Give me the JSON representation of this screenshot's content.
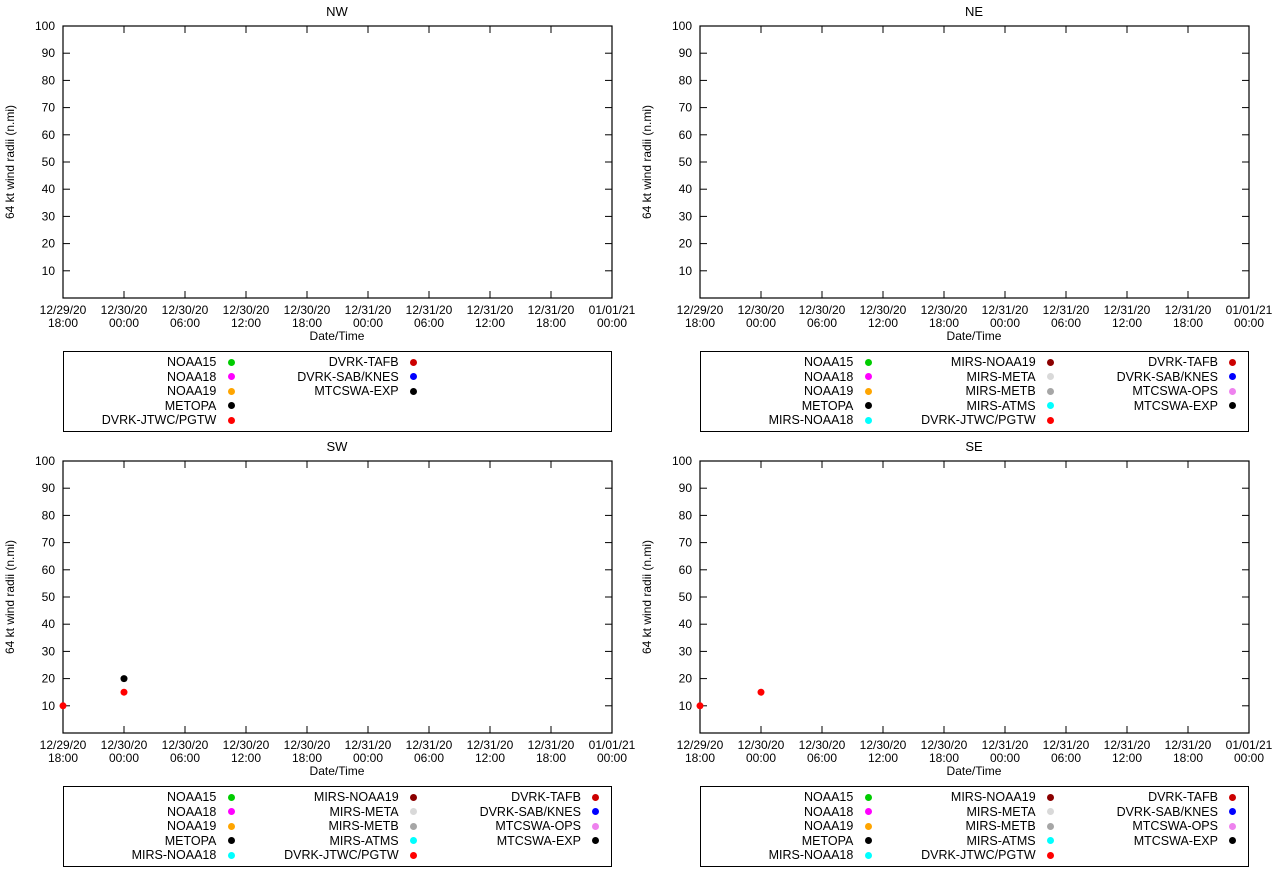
{
  "chart_data": [
    {
      "id": "nw",
      "type": "scatter",
      "title": "NW",
      "xlabel": "Date/Time",
      "ylabel": "64 kt wind radii (n.mi)",
      "ylim": [
        0,
        100
      ],
      "yticks": [
        10,
        20,
        30,
        40,
        50,
        60,
        70,
        80,
        90,
        100
      ],
      "grid": false,
      "legend_position": "below",
      "x_categories": [
        "12/29/20 18:00",
        "12/30/20 00:00",
        "12/30/20 06:00",
        "12/30/20 12:00",
        "12/30/20 18:00",
        "12/31/20 00:00",
        "12/31/20 06:00",
        "12/31/20 12:00",
        "12/31/20 18:00",
        "01/01/21 00:00"
      ],
      "series": [],
      "legend": {
        "ncols": 3,
        "columns": [
          [
            {
              "label": "NOAA15",
              "color": "#00cc00"
            },
            {
              "label": "NOAA18",
              "color": "#ff00ff"
            },
            {
              "label": "NOAA19",
              "color": "#ffa500"
            },
            {
              "label": "METOPA",
              "color": "#000000"
            },
            {
              "label": "DVRK-JTWC/PGTW",
              "color": "#ff0000"
            }
          ],
          [
            {
              "label": "DVRK-TAFB",
              "color": "#cc0000"
            },
            {
              "label": "DVRK-SAB/KNES",
              "color": "#0000ff"
            },
            {
              "label": "MTCSWA-EXP",
              "color": "#000000"
            }
          ]
        ]
      }
    },
    {
      "id": "ne",
      "type": "scatter",
      "title": "NE",
      "xlabel": "Date/Time",
      "ylabel": "64 kt wind radii (n.mi)",
      "ylim": [
        0,
        100
      ],
      "yticks": [
        10,
        20,
        30,
        40,
        50,
        60,
        70,
        80,
        90,
        100
      ],
      "grid": false,
      "legend_position": "below",
      "x_categories": [
        "12/29/20 18:00",
        "12/30/20 00:00",
        "12/30/20 06:00",
        "12/30/20 12:00",
        "12/30/20 18:00",
        "12/31/20 00:00",
        "12/31/20 06:00",
        "12/31/20 12:00",
        "12/31/20 18:00",
        "01/01/21 00:00"
      ],
      "series": [],
      "legend": {
        "ncols": 3,
        "columns": [
          [
            {
              "label": "NOAA15",
              "color": "#00cc00"
            },
            {
              "label": "NOAA18",
              "color": "#ff00ff"
            },
            {
              "label": "NOAA19",
              "color": "#ffa500"
            },
            {
              "label": "METOPA",
              "color": "#000000"
            },
            {
              "label": "MIRS-NOAA18",
              "color": "#00ffff"
            }
          ],
          [
            {
              "label": "MIRS-NOAA19",
              "color": "#8b0000"
            },
            {
              "label": "MIRS-META",
              "color": "#d9d9d9"
            },
            {
              "label": "MIRS-METB",
              "color": "#a6a6a6"
            },
            {
              "label": "MIRS-ATMS",
              "color": "#00ffff"
            },
            {
              "label": "DVRK-JTWC/PGTW",
              "color": "#ff0000"
            }
          ],
          [
            {
              "label": "DVRK-TAFB",
              "color": "#cc0000"
            },
            {
              "label": "DVRK-SAB/KNES",
              "color": "#0000ff"
            },
            {
              "label": "MTCSWA-OPS",
              "color": "#ee82ee"
            },
            {
              "label": "MTCSWA-EXP",
              "color": "#000000"
            }
          ]
        ]
      }
    },
    {
      "id": "sw",
      "type": "scatter",
      "title": "SW",
      "xlabel": "Date/Time",
      "ylabel": "64 kt wind radii (n.mi)",
      "ylim": [
        0,
        100
      ],
      "yticks": [
        10,
        20,
        30,
        40,
        50,
        60,
        70,
        80,
        90,
        100
      ],
      "grid": false,
      "legend_position": "below",
      "x_categories": [
        "12/29/20 18:00",
        "12/30/20 00:00",
        "12/30/20 06:00",
        "12/30/20 12:00",
        "12/30/20 18:00",
        "12/31/20 00:00",
        "12/31/20 06:00",
        "12/31/20 12:00",
        "12/31/20 18:00",
        "01/01/21 00:00"
      ],
      "series": [
        {
          "name": "DVRK-JTWC/PGTW",
          "color": "#ff0000",
          "points": [
            {
              "x": "12/29/20 18:00",
              "y": 10
            },
            {
              "x": "12/30/20 00:00",
              "y": 15
            }
          ]
        },
        {
          "name": "MTCSWA-EXP",
          "color": "#000000",
          "points": [
            {
              "x": "12/30/20 00:00",
              "y": 20
            }
          ]
        }
      ],
      "legend": {
        "ncols": 3,
        "columns": [
          [
            {
              "label": "NOAA15",
              "color": "#00cc00"
            },
            {
              "label": "NOAA18",
              "color": "#ff00ff"
            },
            {
              "label": "NOAA19",
              "color": "#ffa500"
            },
            {
              "label": "METOPA",
              "color": "#000000"
            },
            {
              "label": "MIRS-NOAA18",
              "color": "#00ffff"
            }
          ],
          [
            {
              "label": "MIRS-NOAA19",
              "color": "#8b0000"
            },
            {
              "label": "MIRS-META",
              "color": "#d9d9d9"
            },
            {
              "label": "MIRS-METB",
              "color": "#a6a6a6"
            },
            {
              "label": "MIRS-ATMS",
              "color": "#00ffff"
            },
            {
              "label": "DVRK-JTWC/PGTW",
              "color": "#ff0000"
            }
          ],
          [
            {
              "label": "DVRK-TAFB",
              "color": "#cc0000"
            },
            {
              "label": "DVRK-SAB/KNES",
              "color": "#0000ff"
            },
            {
              "label": "MTCSWA-OPS",
              "color": "#ee82ee"
            },
            {
              "label": "MTCSWA-EXP",
              "color": "#000000"
            }
          ]
        ]
      }
    },
    {
      "id": "se",
      "type": "scatter",
      "title": "SE",
      "xlabel": "Date/Time",
      "ylabel": "64 kt wind radii (n.mi)",
      "ylim": [
        0,
        100
      ],
      "yticks": [
        10,
        20,
        30,
        40,
        50,
        60,
        70,
        80,
        90,
        100
      ],
      "grid": false,
      "legend_position": "below",
      "x_categories": [
        "12/29/20 18:00",
        "12/30/20 00:00",
        "12/30/20 06:00",
        "12/30/20 12:00",
        "12/30/20 18:00",
        "12/31/20 00:00",
        "12/31/20 06:00",
        "12/31/20 12:00",
        "12/31/20 18:00",
        "01/01/21 00:00"
      ],
      "series": [
        {
          "name": "DVRK-JTWC/PGTW",
          "color": "#ff0000",
          "points": [
            {
              "x": "12/29/20 18:00",
              "y": 10
            },
            {
              "x": "12/30/20 00:00",
              "y": 15
            }
          ]
        }
      ],
      "legend": {
        "ncols": 3,
        "columns": [
          [
            {
              "label": "NOAA15",
              "color": "#00cc00"
            },
            {
              "label": "NOAA18",
              "color": "#ff00ff"
            },
            {
              "label": "NOAA19",
              "color": "#ffa500"
            },
            {
              "label": "METOPA",
              "color": "#000000"
            },
            {
              "label": "MIRS-NOAA18",
              "color": "#00ffff"
            }
          ],
          [
            {
              "label": "MIRS-NOAA19",
              "color": "#8b0000"
            },
            {
              "label": "MIRS-META",
              "color": "#d9d9d9"
            },
            {
              "label": "MIRS-METB",
              "color": "#a6a6a6"
            },
            {
              "label": "MIRS-ATMS",
              "color": "#00ffff"
            },
            {
              "label": "DVRK-JTWC/PGTW",
              "color": "#ff0000"
            }
          ],
          [
            {
              "label": "DVRK-TAFB",
              "color": "#cc0000"
            },
            {
              "label": "DVRK-SAB/KNES",
              "color": "#0000ff"
            },
            {
              "label": "MTCSWA-OPS",
              "color": "#ee82ee"
            },
            {
              "label": "MTCSWA-EXP",
              "color": "#000000"
            }
          ]
        ]
      }
    }
  ]
}
